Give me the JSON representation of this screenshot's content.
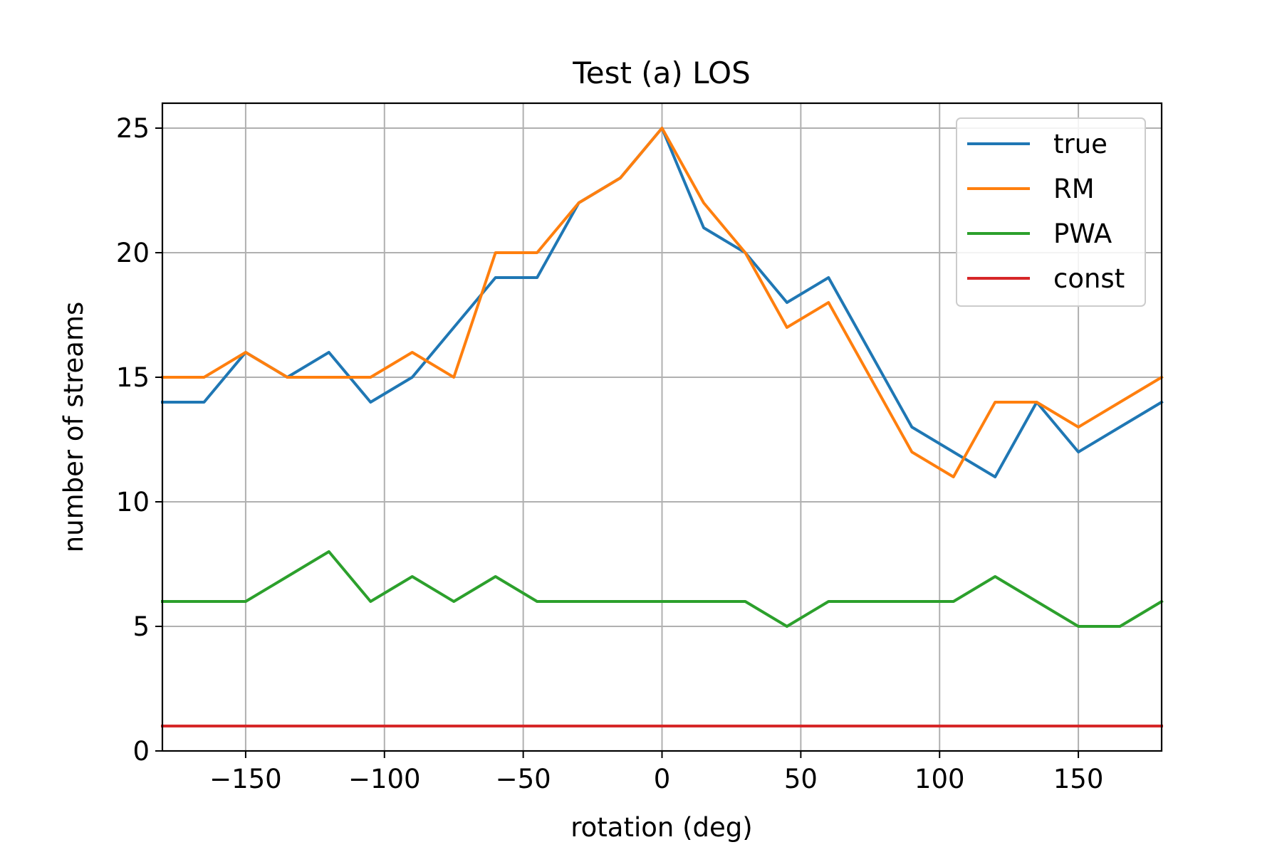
{
  "chart_data": {
    "type": "line",
    "title": "Test (a) LOS",
    "xlabel": "rotation (deg)",
    "ylabel": "number of streams",
    "xlim": [
      -180,
      180
    ],
    "ylim": [
      0,
      26
    ],
    "xticks": [
      -150,
      -100,
      -50,
      0,
      50,
      100,
      150
    ],
    "xtick_labels": [
      "−150",
      "−100",
      "−50",
      "0",
      "50",
      "100",
      "150"
    ],
    "yticks": [
      0,
      5,
      10,
      15,
      20,
      25
    ],
    "ytick_labels": [
      "0",
      "5",
      "10",
      "15",
      "20",
      "25"
    ],
    "grid": true,
    "legend_position": "top-right",
    "x": [
      -180,
      -165,
      -150,
      -135,
      -120,
      -105,
      -90,
      -75,
      -60,
      -45,
      -30,
      -15,
      0,
      15,
      30,
      45,
      60,
      75,
      90,
      105,
      120,
      135,
      150,
      165,
      180
    ],
    "series": [
      {
        "name": "true",
        "color": "#1f77b4",
        "values": [
          14,
          14,
          16,
          15,
          16,
          14,
          15,
          17,
          19,
          19,
          22,
          23,
          25,
          21,
          20,
          18,
          19,
          16,
          13,
          12,
          11,
          14,
          12,
          13,
          14
        ]
      },
      {
        "name": "RM",
        "color": "#ff7f0e",
        "values": [
          15,
          15,
          16,
          15,
          15,
          15,
          16,
          15,
          20,
          20,
          22,
          23,
          25,
          22,
          20,
          17,
          18,
          15,
          12,
          11,
          14,
          14,
          13,
          14,
          15
        ]
      },
      {
        "name": "PWA",
        "color": "#2ca02c",
        "values": [
          6,
          6,
          6,
          7,
          8,
          6,
          7,
          6,
          7,
          6,
          6,
          6,
          6,
          6,
          6,
          5,
          6,
          6,
          6,
          6,
          7,
          6,
          5,
          5,
          6
        ]
      },
      {
        "name": "const",
        "color": "#d62728",
        "values": [
          1,
          1,
          1,
          1,
          1,
          1,
          1,
          1,
          1,
          1,
          1,
          1,
          1,
          1,
          1,
          1,
          1,
          1,
          1,
          1,
          1,
          1,
          1,
          1,
          1
        ]
      }
    ]
  }
}
